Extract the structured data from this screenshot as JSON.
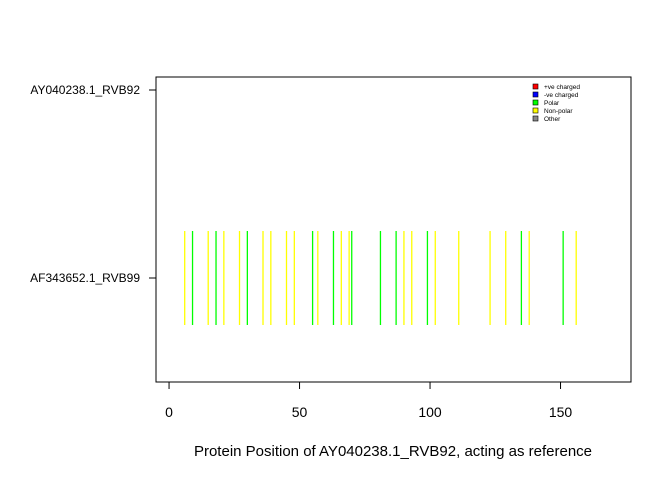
{
  "chart_data": {
    "type": "bar",
    "title": "",
    "xlabel": "Protein Position of AY040238.1_RVB92, acting as reference",
    "ylabel": "",
    "xlim": [
      -5,
      177
    ],
    "x_ticks": [
      0,
      50,
      100,
      150
    ],
    "y_categories": [
      "AY040238.1_RVB92",
      "AF343652.1_RVB99"
    ],
    "legend": {
      "placement": "top-right",
      "entries": [
        {
          "label": "+ve charged",
          "color": "#FF0000"
        },
        {
          "label": "-ve charged",
          "color": "#0000FF"
        },
        {
          "label": "Polar",
          "color": "#00FF00"
        },
        {
          "label": "Non-polar",
          "color": "#FFFF00"
        },
        {
          "label": "Other",
          "color": "#888888"
        }
      ]
    },
    "series": [
      {
        "track": "AF343652.1_RVB99",
        "category": "Polar",
        "color": "#00FF00",
        "positions": [
          9,
          18,
          30,
          55,
          63,
          70,
          81,
          87,
          99,
          135,
          151
        ]
      },
      {
        "track": "AF343652.1_RVB99",
        "category": "Non-polar",
        "color": "#FFFF00",
        "positions": [
          6,
          15,
          21,
          27,
          36,
          39,
          45,
          48,
          57,
          66,
          69,
          90,
          93,
          102,
          111,
          123,
          129,
          138,
          156
        ]
      }
    ]
  }
}
